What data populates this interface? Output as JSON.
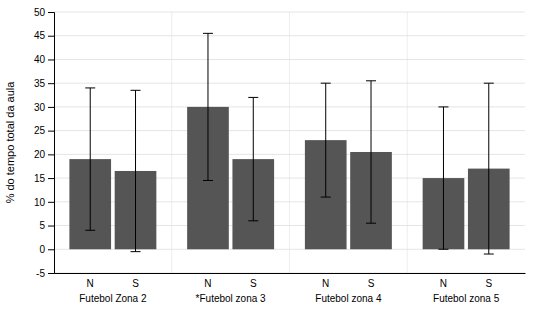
{
  "chart_data": {
    "type": "bar",
    "categories": [
      "Futebol Zona 2",
      "*Futebol zona 3",
      "Futebol zona 4",
      "Futebol zona 5"
    ],
    "series": [
      {
        "name": "N",
        "color": "#555555",
        "values": [
          19.0,
          30.0,
          23.0,
          15.0
        ],
        "errors": [
          15.0,
          15.5,
          12.0,
          15.0
        ]
      },
      {
        "name": "S",
        "color": "#555555",
        "values": [
          16.5,
          19.0,
          20.5,
          17.0
        ],
        "errors": [
          17.0,
          13.0,
          15.0,
          18.0
        ]
      }
    ],
    "ylabel": "% do tempo total da aula",
    "ylim": [
      -5,
      50
    ],
    "yticks": [
      -5,
      0,
      5,
      10,
      15,
      20,
      25,
      30,
      35,
      40,
      45,
      50
    ],
    "grid": true
  }
}
